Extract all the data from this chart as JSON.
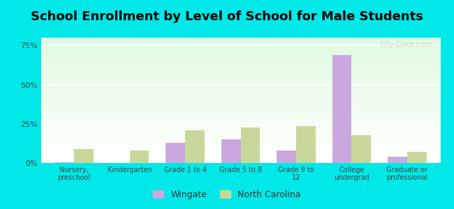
{
  "title": "School Enrollment by Level of School for Male Students",
  "categories": [
    "Nursery,\npreschool",
    "Kindergarten",
    "Grade 1 to 4",
    "Grade 5 to 8",
    "Grade 9 to\n12",
    "College\nundergrad",
    "Graduate or\nprofessional"
  ],
  "wingate": [
    0.5,
    0.0,
    13.0,
    15.0,
    8.0,
    69.0,
    4.0
  ],
  "north_carolina": [
    9.0,
    8.0,
    21.0,
    22.5,
    23.5,
    18.0,
    7.0
  ],
  "wingate_color": "#c9a8e0",
  "nc_color": "#c8d89a",
  "background_color": "#00e8e8",
  "ylim": [
    0,
    80
  ],
  "yticks": [
    0,
    25,
    50,
    75
  ],
  "ytick_labels": [
    "0%",
    "25%",
    "50%",
    "75%"
  ],
  "legend_labels": [
    "Wingate",
    "North Carolina"
  ],
  "title_fontsize": 13,
  "bar_width": 0.35,
  "watermark": "City-Data.com"
}
